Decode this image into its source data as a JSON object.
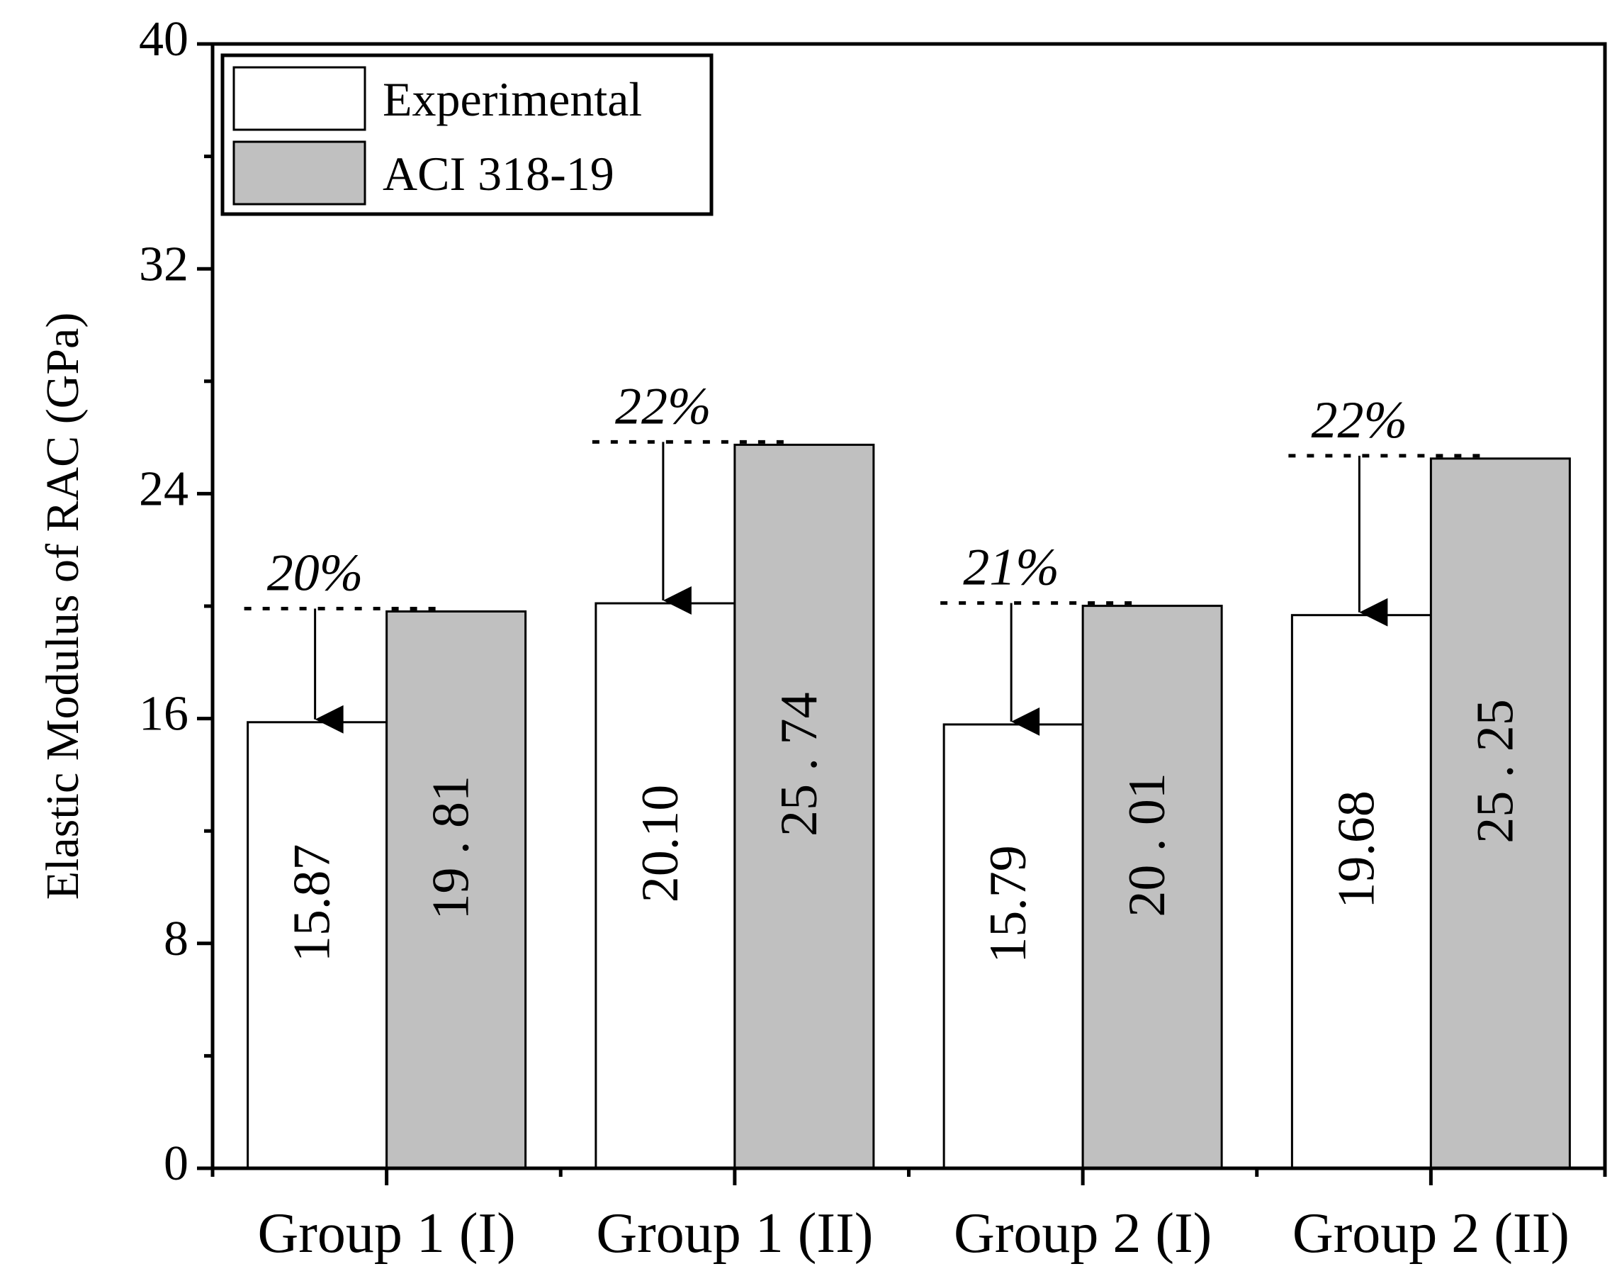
{
  "chart_data": {
    "type": "bar",
    "title": "",
    "xlabel": "",
    "ylabel": "Elastic Modulus of RAC (GPa)",
    "ylim": [
      0,
      40
    ],
    "yticks": [
      0,
      8,
      16,
      24,
      32,
      40
    ],
    "categories": [
      "Group 1 (I)",
      "Group 1 (II)",
      "Group 2 (I)",
      "Group 2 (II)"
    ],
    "series": [
      {
        "name": "Experimental",
        "color": "#ffffff",
        "values": [
          15.87,
          20.1,
          15.79,
          19.68
        ],
        "labels": [
          "15.87",
          "20.10",
          "15.79",
          "19.68"
        ]
      },
      {
        "name": "ACI 318-19",
        "color": "#c0c0c0",
        "values": [
          19.81,
          25.74,
          20.01,
          25.25
        ],
        "labels": [
          "19 . 81",
          "25 . 74",
          "20 . 01",
          "25 . 25"
        ]
      }
    ],
    "annotations": [
      "20%",
      "22%",
      "21%",
      "22%"
    ],
    "legend_position": "top-left",
    "grid": false
  }
}
